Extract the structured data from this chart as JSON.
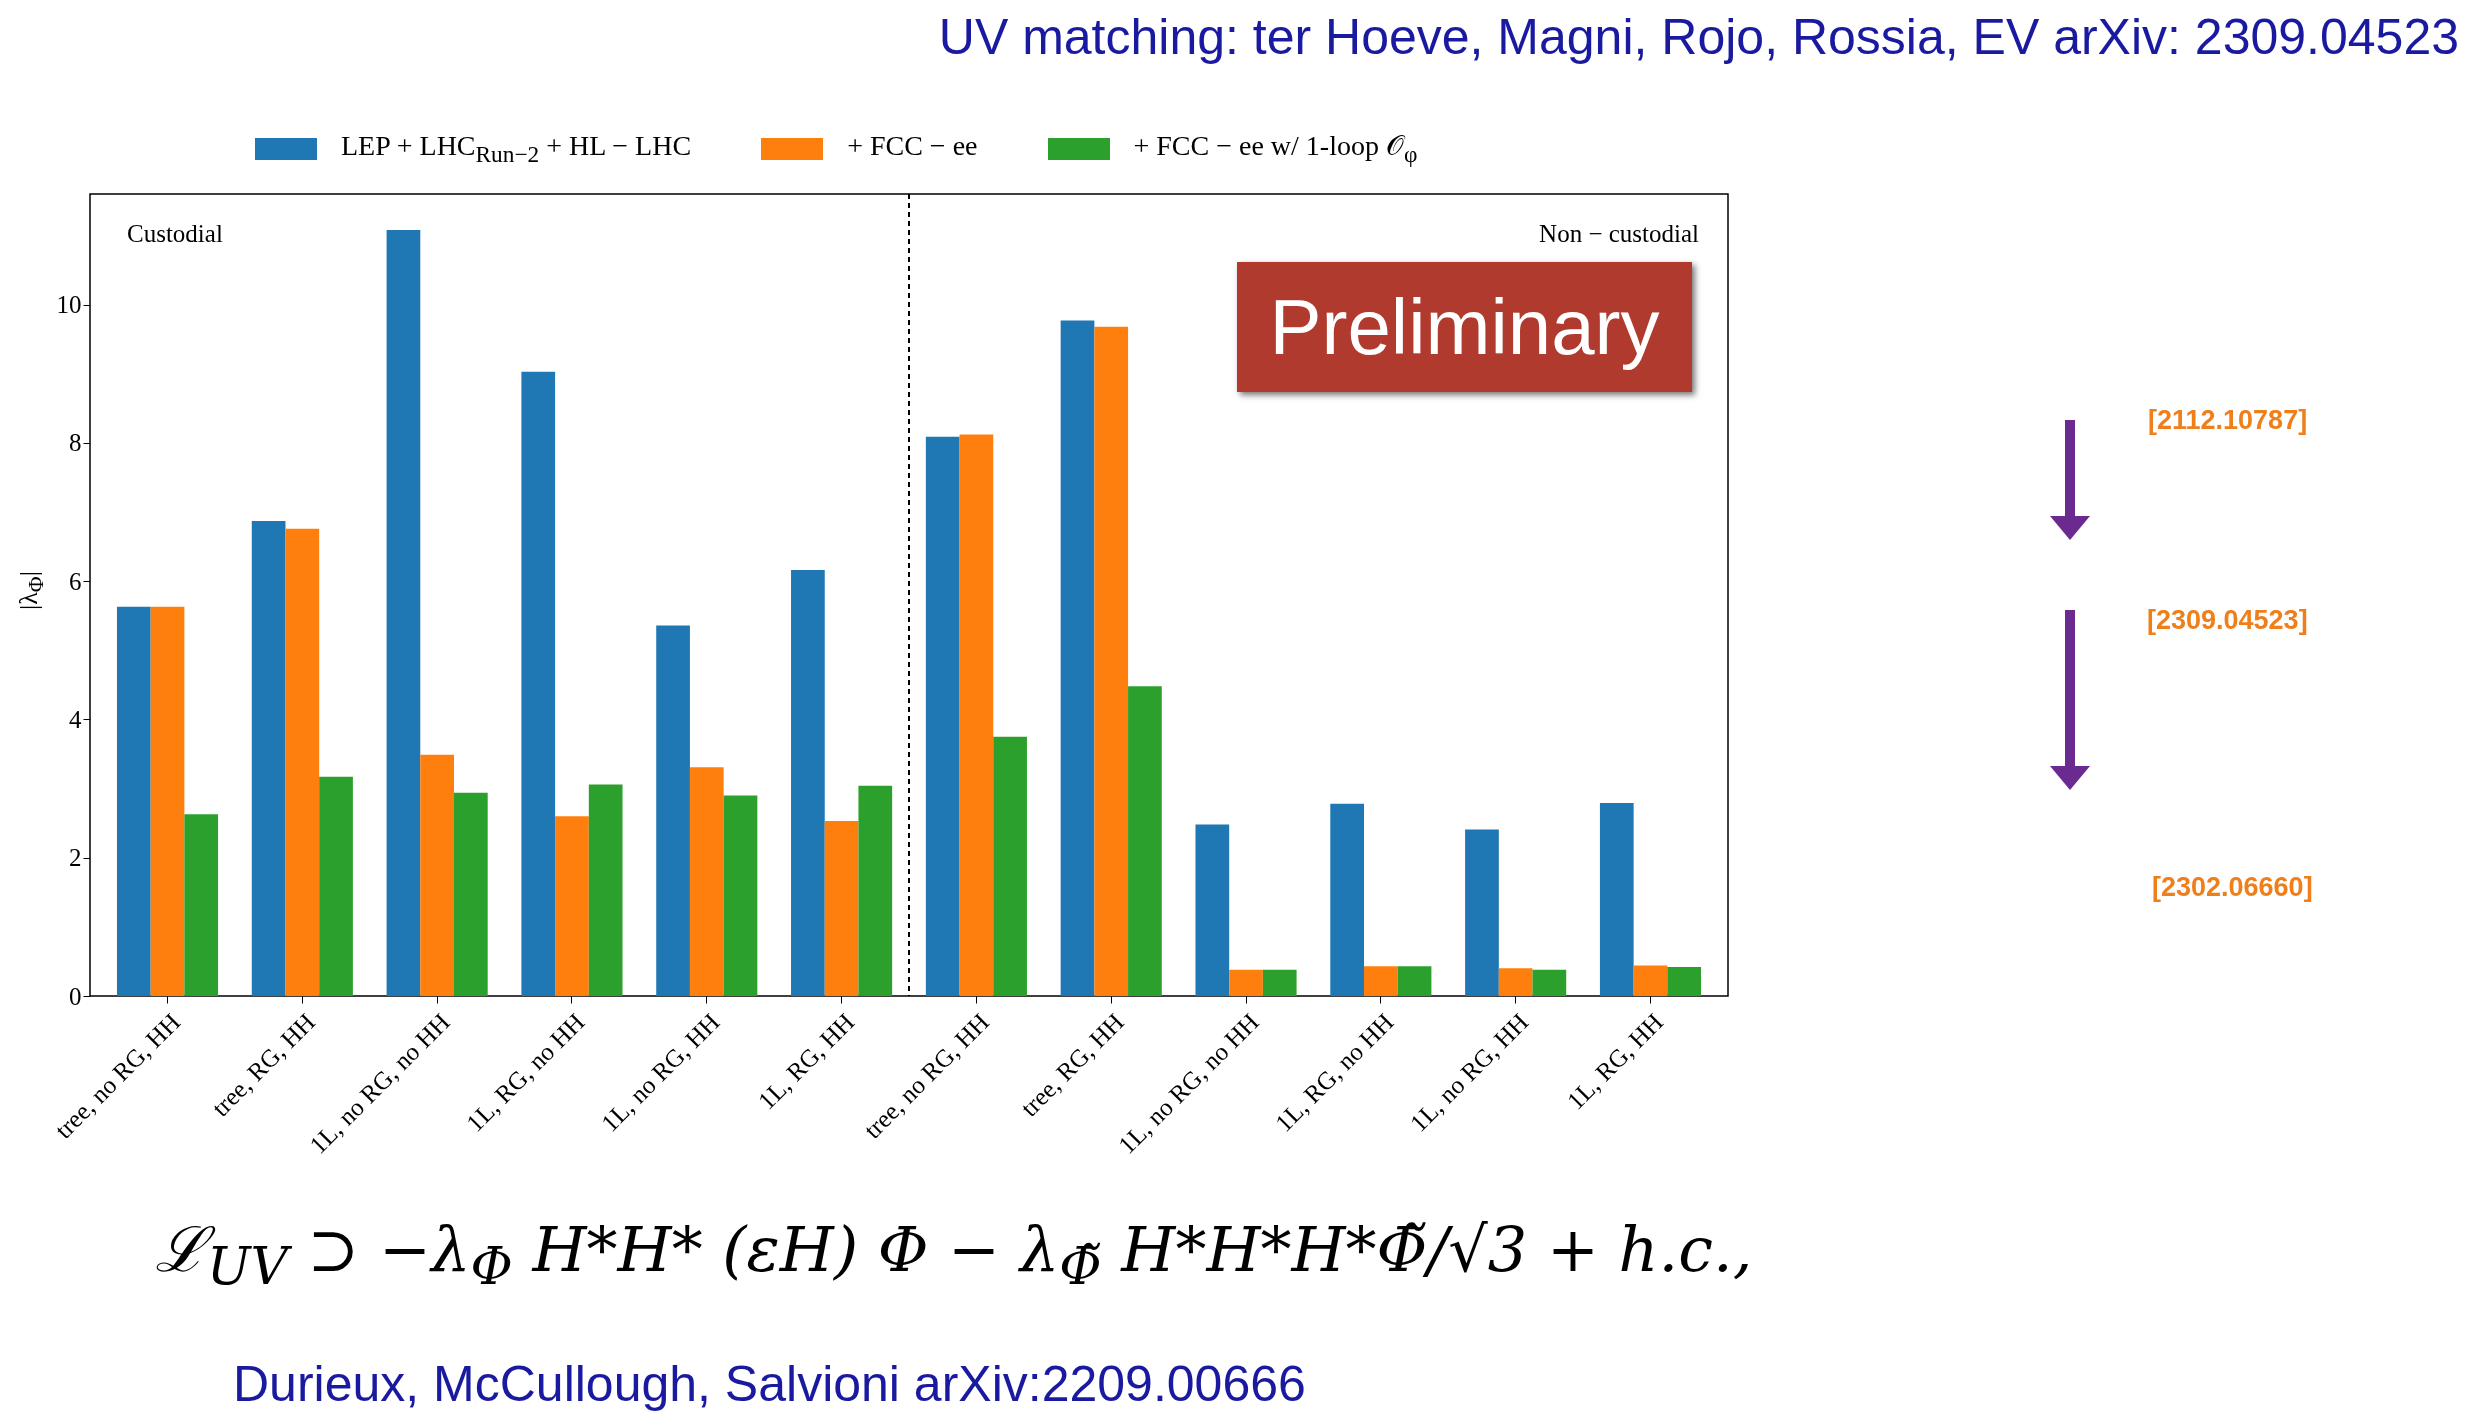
{
  "chart_data": {
    "type": "bar",
    "title": "UV matching: ter Hoeve, Magni, Rojo, Rossia, EV arXiv: 2309.04523",
    "ylabel": "|λ$_{Φ}$|",
    "categories": [
      "tree, no RG, HH",
      "tree, RG, HH",
      "1L, no RG, no HH",
      "1L, RG, no HH",
      "1L, no RG, HH",
      "1L, RG, HH",
      "tree, no RG, HH",
      "tree, RG, HH",
      "1L, no RG, no HH",
      "1L, RG, no HH",
      "1L, no RG, HH",
      "1L, RG, HH"
    ],
    "series": [
      {
        "name": "LEP + LHC$_{Run−2}$ +  HL − LHC",
        "color": "#1f77b4",
        "values": [
          5.63,
          6.87,
          11.08,
          9.03,
          5.36,
          6.16,
          8.09,
          9.77,
          2.48,
          2.78,
          2.41,
          2.79
        ]
      },
      {
        "name": "+ FCC − ee",
        "color": "#ff7f0e",
        "values": [
          5.63,
          6.76,
          3.49,
          2.6,
          3.31,
          2.53,
          8.12,
          9.68,
          0.38,
          0.43,
          0.4,
          0.44
        ]
      },
      {
        "name": "+ FCC − ee w/ 1-loop 𝒪$_{φ}$",
        "color": "#2ca02c",
        "values": [
          2.63,
          3.17,
          2.94,
          3.06,
          2.9,
          3.04,
          3.75,
          4.48,
          0.38,
          0.43,
          0.38,
          0.42
        ]
      }
    ],
    "ylim": [
      0,
      11.6
    ],
    "yticks": [
      0,
      2,
      4,
      6,
      8,
      10
    ],
    "legend": "top",
    "annotations": [
      "Custodial",
      "Non − custodial",
      "Preliminary",
      "[2112.10787]",
      "[2309.04523]",
      "[2302.06660]",
      "ℒ$_{UV}$ ⊃ −λ$_{Φ}$ H*H* (εH) Φ − λ$_{Φ̃}$ H*H*H*Φ̃/√3 + h.c.,",
      "Durieux, McCullough, Salvioni arXiv:2209.00666"
    ]
  }
}
